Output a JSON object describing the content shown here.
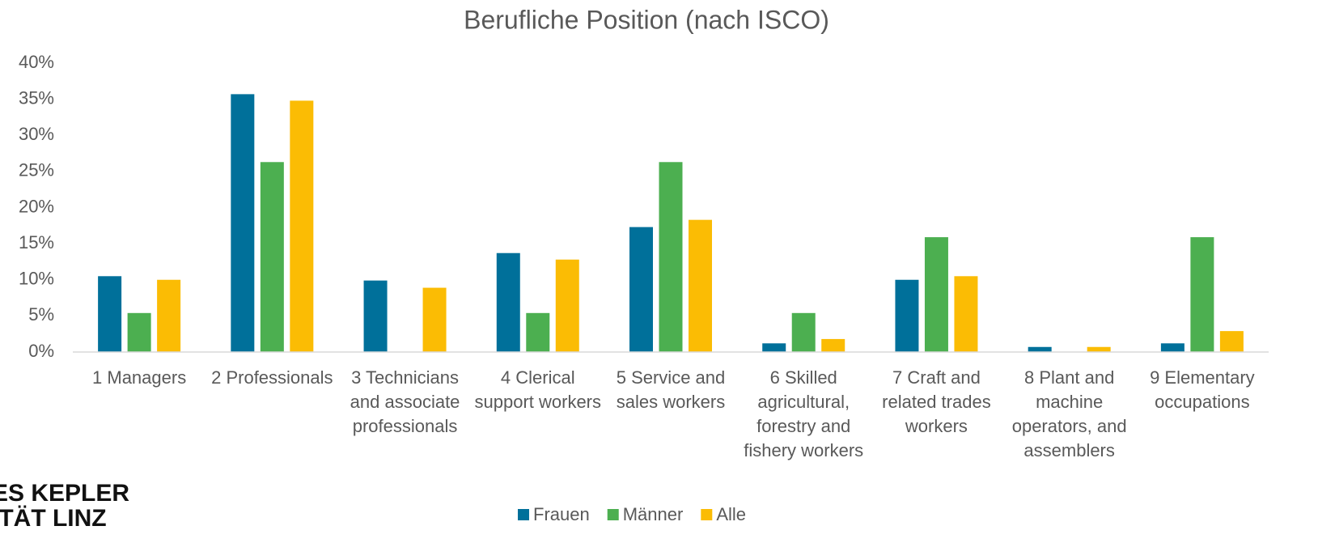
{
  "chart_data": {
    "type": "bar",
    "title": "Berufliche Position (nach ISCO)",
    "categories": [
      "1 Managers",
      "2 Professionals",
      "3 Technicians and associate professionals",
      "4 Clerical support workers",
      "5 Service and sales workers",
      "6 Skilled agricultural, forestry and fishery workers",
      "7 Craft and related trades workers",
      "8 Plant and machine operators, and assemblers",
      "9 Elementary occupations"
    ],
    "series": [
      {
        "name": "Frauen",
        "color": "#00709a",
        "values": [
          10.5,
          35.7,
          9.9,
          13.7,
          17.3,
          1.2,
          10.0,
          0.7,
          1.2
        ]
      },
      {
        "name": "Männer",
        "color": "#4caf50",
        "values": [
          5.4,
          26.3,
          0,
          5.4,
          26.3,
          5.4,
          15.9,
          0,
          15.9
        ]
      },
      {
        "name": "Alle",
        "color": "#fbbc04",
        "values": [
          10.0,
          34.8,
          8.9,
          12.8,
          18.3,
          1.8,
          10.5,
          0.7,
          2.9
        ]
      }
    ],
    "ylim": [
      0,
      40
    ],
    "yticks": [
      {
        "value": 0,
        "label": "0%"
      },
      {
        "value": 5,
        "label": "5%"
      },
      {
        "value": 10,
        "label": "10%"
      },
      {
        "value": 15,
        "label": "15%"
      },
      {
        "value": 20,
        "label": "20%"
      },
      {
        "value": 25,
        "label": "25%"
      },
      {
        "value": 30,
        "label": "30%"
      },
      {
        "value": 35,
        "label": "35%"
      },
      {
        "value": 40,
        "label": "40%"
      }
    ],
    "grid": false,
    "legend": "bottom"
  },
  "logo": [
    "ES KEPLER",
    "ITÄT LINZ"
  ]
}
